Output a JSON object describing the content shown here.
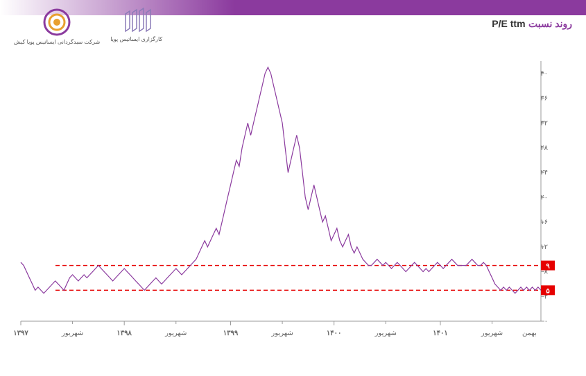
{
  "header": {
    "title_prefix": "روند نسبت",
    "title_metric": "P/E ttm"
  },
  "logos": {
    "logo1_caption": "کارگزاری\nایساتیس پویا",
    "logo2_caption": "شرکت سبدگردانی\nایساتیس پویا کیش"
  },
  "chart": {
    "type": "line",
    "line_color": "#8b3a9e",
    "line_width": 1.2,
    "background_color": "#ffffff",
    "grid_color": "#e8e8e8",
    "axis_color": "#999",
    "ref_line_color": "#e60000",
    "ref_line_dash": "6,4",
    "ref_box_color": "#e60000",
    "ylim": [
      0,
      42
    ],
    "ytick_step": 4,
    "yticks": [
      0,
      4,
      8,
      12,
      16,
      20,
      24,
      28,
      32,
      36,
      40
    ],
    "ytick_labels": [
      "۰",
      "۴",
      "۸",
      "۱۲",
      "۱۶",
      "۲۰",
      "۲۴",
      "۲۸",
      "۳۲",
      "۳۶",
      "۴۰"
    ],
    "x_major_labels": [
      "۱۳۹۷",
      "۱۳۹۸",
      "۱۳۹۹",
      "۱۴۰۰",
      "۱۴۰۱"
    ],
    "x_minor_label": "شهریور",
    "x_last_label": "بهمن",
    "reference_lines": [
      {
        "value": 9,
        "label": "۹"
      },
      {
        "value": 5,
        "label": "۵"
      }
    ],
    "values": [
      9.5,
      9,
      8,
      7,
      6,
      5,
      5.5,
      5,
      4.5,
      5,
      5.5,
      6,
      6.5,
      6,
      5.5,
      5,
      6,
      7,
      7.5,
      7,
      6.5,
      7,
      7.5,
      7,
      7.5,
      8,
      8.5,
      9,
      8.5,
      8,
      7.5,
      7,
      6.5,
      7,
      7.5,
      8,
      8.5,
      8,
      7.5,
      7,
      6.5,
      6,
      5.5,
      5,
      5.5,
      6,
      6.5,
      7,
      6.5,
      6,
      6.5,
      7,
      7.5,
      8,
      8.5,
      8,
      7.5,
      8,
      8.5,
      9,
      9.5,
      10,
      11,
      12,
      13,
      12,
      13,
      14,
      15,
      14,
      16,
      18,
      20,
      22,
      24,
      26,
      25,
      28,
      30,
      32,
      30,
      32,
      34,
      36,
      38,
      40,
      41,
      40,
      38,
      36,
      34,
      32,
      28,
      24,
      26,
      28,
      30,
      28,
      24,
      20,
      18,
      20,
      22,
      20,
      18,
      16,
      17,
      15,
      13,
      14,
      15,
      13,
      12,
      13,
      14,
      12,
      11,
      12,
      11,
      10,
      9.5,
      9,
      9,
      9.5,
      10,
      9.5,
      9,
      9.5,
      9,
      8.5,
      9,
      9.5,
      9,
      8.5,
      8,
      8.5,
      9,
      9.5,
      9,
      8.5,
      8,
      8.5,
      8,
      8.5,
      9,
      9.5,
      9,
      8.5,
      9,
      9.5,
      10,
      9.5,
      9,
      9,
      9,
      9,
      9.5,
      10,
      9.5,
      9,
      9,
      9.5,
      9,
      8,
      7,
      6,
      5.5,
      5,
      5.5,
      5,
      5.5,
      5,
      4.5,
      5,
      5.5,
      5,
      5.5,
      5,
      5.5,
      5,
      5.5,
      5
    ]
  }
}
